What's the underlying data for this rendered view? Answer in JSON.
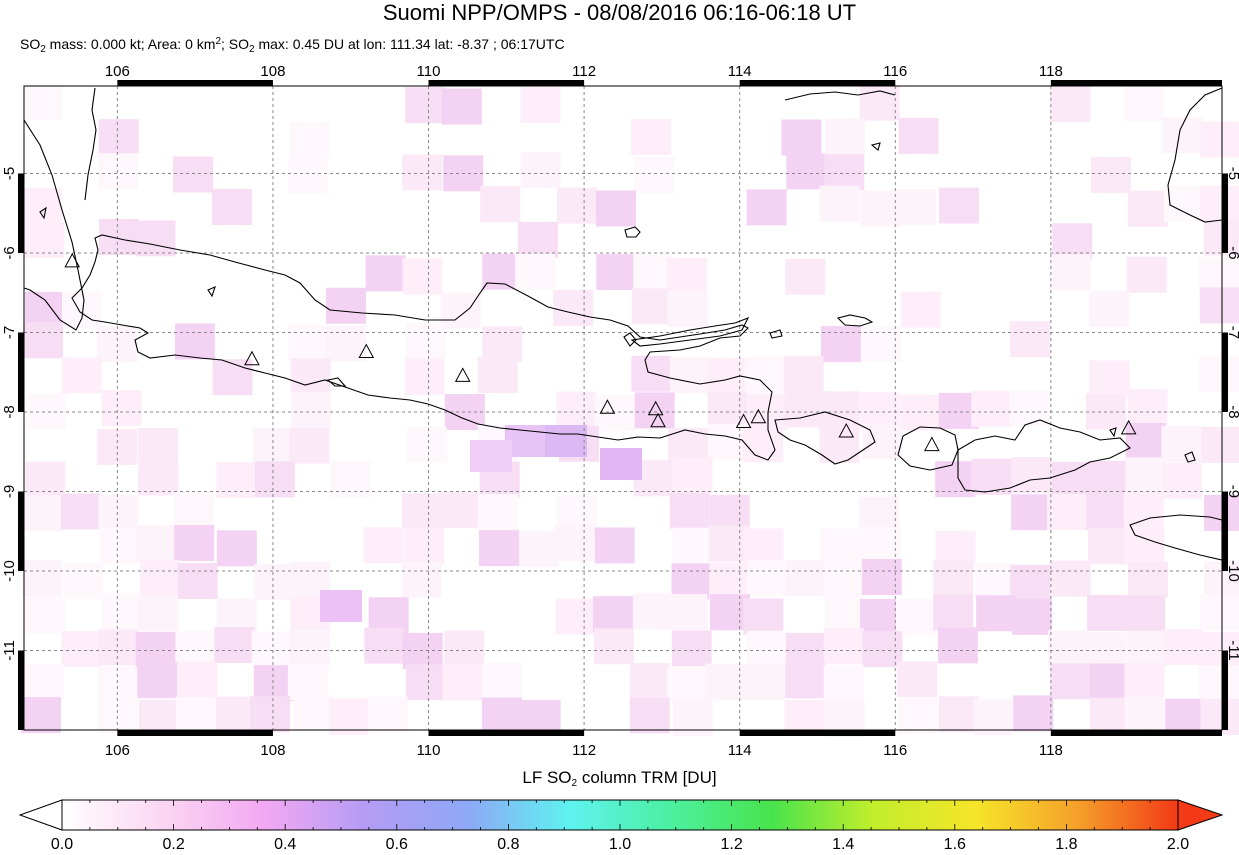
{
  "title": "Suomi NPP/OMPS - 08/08/2016 06:16-06:18 UT",
  "subtitle": {
    "p1": "SO",
    "p1_sub": "2",
    "p2": " mass: 0.000 kt; Area: 0 km",
    "p2_sup": "2",
    "p3": "; SO",
    "p3_sub": "2",
    "p4": " max: 0.45 DU at lon: 111.34 lat: -8.37 ; 06:17UTC"
  },
  "map": {
    "lon_range": [
      104.8,
      120.2
    ],
    "lat_range": [
      -12.0,
      -3.9
    ],
    "lon_ticks": [
      "106",
      "108",
      "110",
      "112",
      "114",
      "116",
      "118"
    ],
    "lat_ticks": [
      "-5",
      "-6",
      "-7",
      "-8",
      "-9",
      "-10",
      "-11"
    ],
    "grid": true,
    "volcanoes": [
      {
        "lon": 105.42,
        "lat": -6.1
      },
      {
        "lon": 107.73,
        "lat": -7.33
      },
      {
        "lon": 109.2,
        "lat": -7.24
      },
      {
        "lon": 110.44,
        "lat": -7.54
      },
      {
        "lon": 112.3,
        "lat": -7.94
      },
      {
        "lon": 112.92,
        "lat": -7.96
      },
      {
        "lon": 112.95,
        "lat": -8.11
      },
      {
        "lon": 114.05,
        "lat": -8.12
      },
      {
        "lon": 114.24,
        "lat": -8.06
      },
      {
        "lon": 115.37,
        "lat": -8.24
      },
      {
        "lon": 116.47,
        "lat": -8.41
      },
      {
        "lon": 119.0,
        "lat": -8.2
      }
    ]
  },
  "colorbar": {
    "title_p1": "LF SO",
    "title_sub": "2",
    "title_p2": " column TRM [DU]",
    "labels": [
      "0.0",
      "0.2",
      "0.4",
      "0.6",
      "0.8",
      "1.0",
      "1.2",
      "1.4",
      "1.6",
      "1.8",
      "2.0"
    ],
    "range": [
      0.0,
      2.0
    ],
    "colors": [
      "#ffffff",
      "#fbd6f2",
      "#f2a8f2",
      "#b49cf4",
      "#8ea8f6",
      "#5ef2f0",
      "#4cf0a0",
      "#48e34c",
      "#c2ee2c",
      "#f6e52a",
      "#f5a12a",
      "#f23a16"
    ]
  }
}
